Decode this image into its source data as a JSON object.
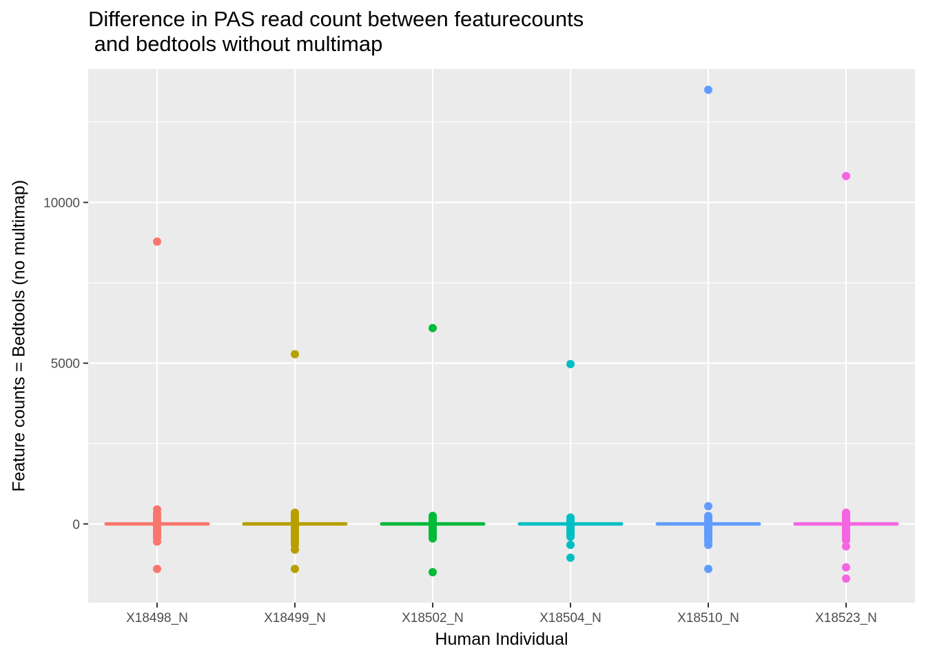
{
  "chart_data": {
    "type": "scatter",
    "title": "Difference in PAS read count between featurecounts\n and bedtools without multimap",
    "xlabel": "Human Individual",
    "ylabel": "Feature counts = Bedtools (no multimap)",
    "ylim": [
      -2450,
      14150
    ],
    "yticks": [
      0,
      5000,
      10000
    ],
    "grid": true,
    "legend": "none",
    "categories": [
      "X18498_N",
      "X18499_N",
      "X18502_N",
      "X18504_N",
      "X18510_N",
      "X18523_N"
    ],
    "colors": [
      "#F8766D",
      "#B79F00",
      "#00BA38",
      "#00BFC4",
      "#619CFF",
      "#F564E3"
    ],
    "series": [
      {
        "category": "X18498_N",
        "values": [
          8780,
          450,
          320,
          250,
          200,
          150,
          100,
          50,
          0,
          -50,
          -100,
          -150,
          -200,
          -250,
          -300,
          -350,
          -400,
          -450,
          -550,
          -1400
        ]
      },
      {
        "category": "X18499_N",
        "values": [
          5280,
          350,
          300,
          250,
          200,
          150,
          100,
          50,
          0,
          -50,
          -100,
          -150,
          -200,
          -250,
          -300,
          -400,
          -450,
          -500,
          -600,
          -650,
          -800,
          -1400
        ]
      },
      {
        "category": "X18502_N",
        "values": [
          6090,
          250,
          200,
          150,
          100,
          50,
          0,
          -50,
          -100,
          -150,
          -200,
          -250,
          -300,
          -350,
          -400,
          -450,
          -1500
        ]
      },
      {
        "category": "X18504_N",
        "values": [
          4970,
          200,
          150,
          100,
          50,
          0,
          -50,
          -100,
          -150,
          -200,
          -250,
          -300,
          -350,
          -400,
          -650,
          -1050
        ]
      },
      {
        "category": "X18510_N",
        "values": [
          13500,
          550,
          250,
          200,
          150,
          100,
          50,
          0,
          -50,
          -100,
          -150,
          -200,
          -250,
          -300,
          -350,
          -400,
          -450,
          -500,
          -550,
          -650,
          -1400
        ]
      },
      {
        "category": "X18523_N",
        "values": [
          10820,
          350,
          300,
          250,
          200,
          150,
          100,
          50,
          0,
          -50,
          -100,
          -150,
          -200,
          -250,
          -300,
          -350,
          -400,
          -450,
          -500,
          -700,
          -1350,
          -1700
        ]
      }
    ]
  }
}
